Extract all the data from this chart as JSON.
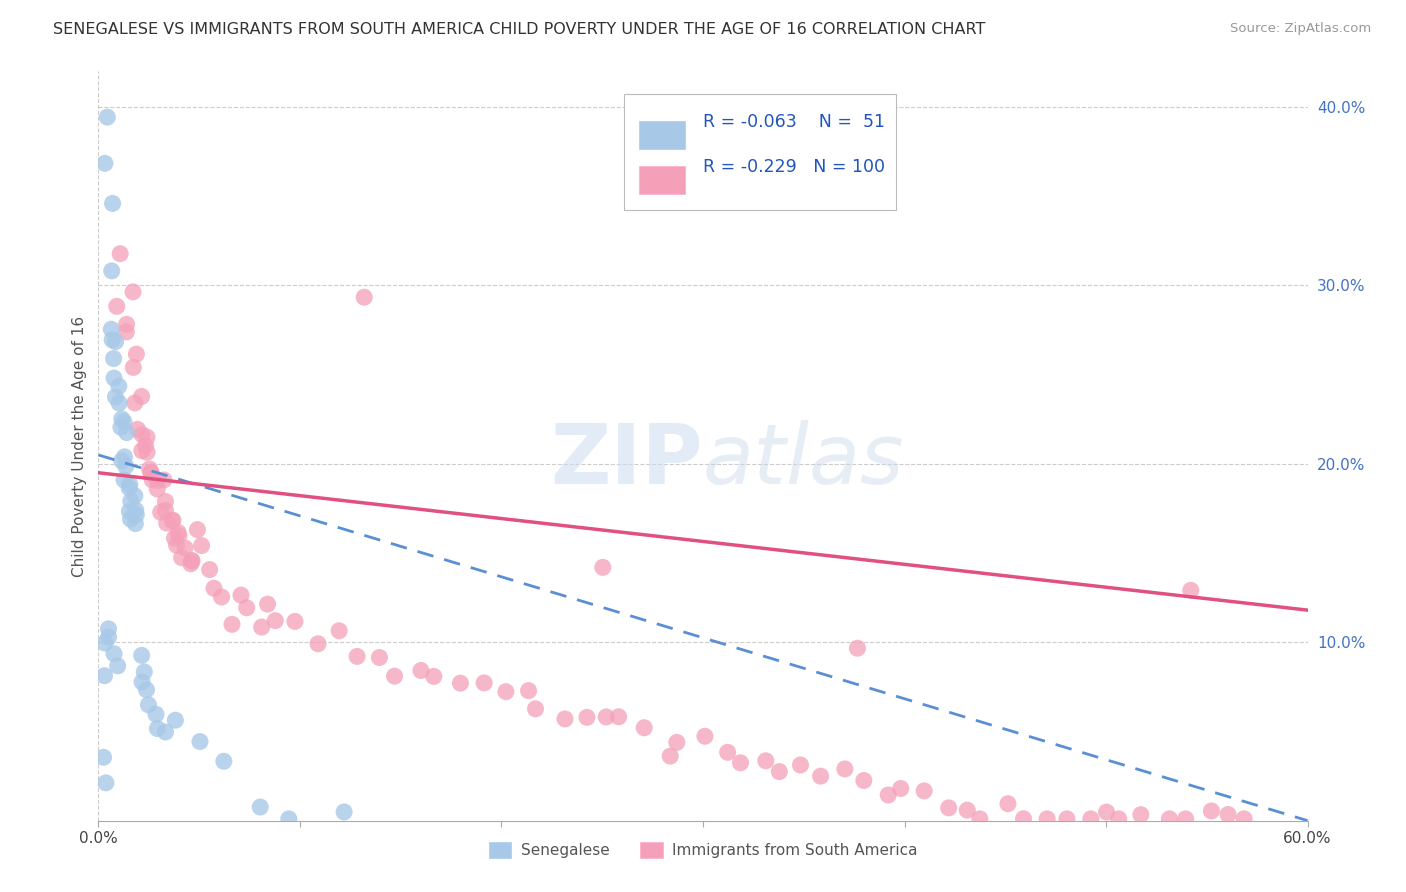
{
  "title": "SENEGALESE VS IMMIGRANTS FROM SOUTH AMERICA CHILD POVERTY UNDER THE AGE OF 16 CORRELATION CHART",
  "source": "Source: ZipAtlas.com",
  "ylabel": "Child Poverty Under the Age of 16",
  "xlim": [
    0.0,
    0.6
  ],
  "ylim": [
    0.0,
    0.42
  ],
  "R_blue": -0.063,
  "N_blue": 51,
  "R_pink": -0.229,
  "N_pink": 100,
  "color_blue": "#a8c8e8",
  "color_pink": "#f4a0b8",
  "color_blue_line": "#5b8fd4",
  "color_pink_line": "#e05080",
  "watermark_color": "#ddeeff",
  "legend_label_blue": "Senegalese",
  "legend_label_pink": "Immigrants from South America",
  "blue_x": [
    0.002,
    0.003,
    0.003,
    0.004,
    0.004,
    0.005,
    0.005,
    0.005,
    0.006,
    0.006,
    0.007,
    0.007,
    0.008,
    0.008,
    0.008,
    0.009,
    0.009,
    0.01,
    0.01,
    0.01,
    0.011,
    0.011,
    0.012,
    0.012,
    0.013,
    0.013,
    0.014,
    0.015,
    0.015,
    0.016,
    0.016,
    0.017,
    0.017,
    0.018,
    0.018,
    0.019,
    0.02,
    0.02,
    0.021,
    0.022,
    0.023,
    0.025,
    0.028,
    0.03,
    0.035,
    0.04,
    0.05,
    0.06,
    0.08,
    0.095,
    0.12
  ],
  "blue_y": [
    0.02,
    0.035,
    0.08,
    0.395,
    0.37,
    0.11,
    0.105,
    0.1,
    0.34,
    0.31,
    0.285,
    0.27,
    0.26,
    0.25,
    0.098,
    0.265,
    0.092,
    0.245,
    0.24,
    0.23,
    0.225,
    0.22,
    0.218,
    0.21,
    0.205,
    0.2,
    0.195,
    0.192,
    0.188,
    0.185,
    0.182,
    0.18,
    0.178,
    0.175,
    0.172,
    0.168,
    0.165,
    0.085,
    0.08,
    0.075,
    0.07,
    0.065,
    0.06,
    0.055,
    0.05,
    0.045,
    0.04,
    0.035,
    0.01,
    0.005,
    0.003
  ],
  "pink_x": [
    0.01,
    0.012,
    0.013,
    0.015,
    0.016,
    0.017,
    0.018,
    0.019,
    0.02,
    0.021,
    0.022,
    0.023,
    0.024,
    0.025,
    0.026,
    0.027,
    0.028,
    0.029,
    0.03,
    0.031,
    0.032,
    0.033,
    0.034,
    0.035,
    0.036,
    0.037,
    0.038,
    0.039,
    0.04,
    0.042,
    0.044,
    0.046,
    0.048,
    0.05,
    0.055,
    0.06,
    0.065,
    0.07,
    0.075,
    0.08,
    0.085,
    0.09,
    0.1,
    0.11,
    0.12,
    0.13,
    0.14,
    0.15,
    0.16,
    0.17,
    0.18,
    0.19,
    0.2,
    0.21,
    0.22,
    0.23,
    0.24,
    0.25,
    0.26,
    0.27,
    0.28,
    0.29,
    0.3,
    0.31,
    0.32,
    0.33,
    0.34,
    0.35,
    0.36,
    0.37,
    0.38,
    0.39,
    0.4,
    0.41,
    0.42,
    0.43,
    0.44,
    0.45,
    0.46,
    0.47,
    0.48,
    0.49,
    0.5,
    0.51,
    0.52,
    0.53,
    0.54,
    0.55,
    0.56,
    0.57,
    0.015,
    0.025,
    0.035,
    0.045,
    0.055,
    0.065,
    0.13,
    0.25,
    0.38,
    0.54
  ],
  "pink_y": [
    0.325,
    0.295,
    0.28,
    0.27,
    0.26,
    0.25,
    0.24,
    0.235,
    0.225,
    0.218,
    0.212,
    0.208,
    0.205,
    0.2,
    0.198,
    0.195,
    0.192,
    0.188,
    0.185,
    0.182,
    0.18,
    0.175,
    0.172,
    0.168,
    0.165,
    0.162,
    0.16,
    0.158,
    0.155,
    0.15,
    0.148,
    0.145,
    0.142,
    0.14,
    0.135,
    0.132,
    0.128,
    0.125,
    0.12,
    0.118,
    0.115,
    0.112,
    0.108,
    0.105,
    0.1,
    0.095,
    0.092,
    0.088,
    0.085,
    0.082,
    0.078,
    0.075,
    0.072,
    0.068,
    0.065,
    0.062,
    0.058,
    0.055,
    0.052,
    0.048,
    0.045,
    0.042,
    0.04,
    0.038,
    0.035,
    0.032,
    0.03,
    0.028,
    0.025,
    0.022,
    0.02,
    0.018,
    0.015,
    0.012,
    0.01,
    0.008,
    0.006,
    0.005,
    0.004,
    0.003,
    0.002,
    0.002,
    0.001,
    0.001,
    0.001,
    0.001,
    0.001,
    0.001,
    0.001,
    0.001,
    0.29,
    0.215,
    0.175,
    0.158,
    0.145,
    0.11,
    0.285,
    0.145,
    0.095,
    0.13
  ]
}
